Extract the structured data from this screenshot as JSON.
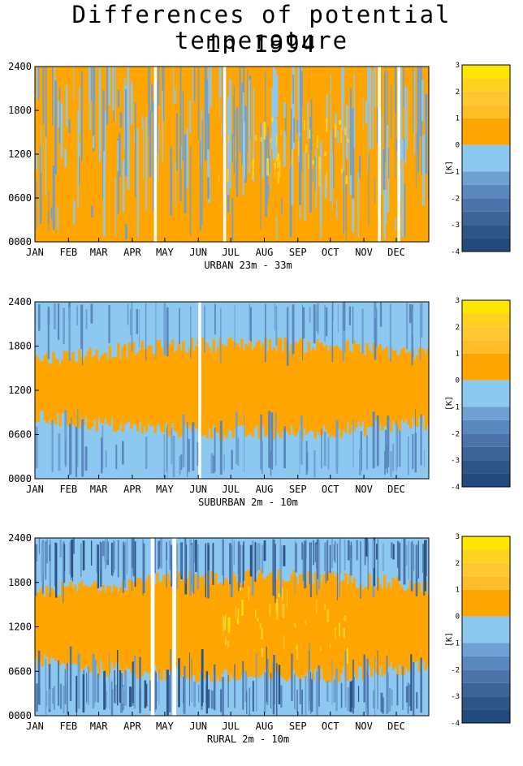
{
  "title_line1": "Differences of potential temperature",
  "title_line2": "in  1994",
  "colorbar": {
    "unit_label": "[K]",
    "tick_labels": [
      "3",
      "2",
      "1",
      "0",
      "-1",
      "-2",
      "-3",
      "-4"
    ],
    "levels": [
      {
        "from": 2.5,
        "to": 3.0,
        "color": "#ffe600"
      },
      {
        "from": 2.0,
        "to": 2.5,
        "color": "#ffd21e"
      },
      {
        "from": 1.5,
        "to": 2.0,
        "color": "#ffc832"
      },
      {
        "from": 1.0,
        "to": 1.5,
        "color": "#ffbe28"
      },
      {
        "from": 0.0,
        "to": 1.0,
        "color": "#ffa500"
      },
      {
        "from": -1.0,
        "to": 0.0,
        "color": "#8cc8f0"
      },
      {
        "from": -1.5,
        "to": -1.0,
        "color": "#6ea0d2"
      },
      {
        "from": -2.0,
        "to": -1.5,
        "color": "#5a87be"
      },
      {
        "from": -2.5,
        "to": -2.0,
        "color": "#4b73aa"
      },
      {
        "from": -3.0,
        "to": -2.5,
        "color": "#3c6496"
      },
      {
        "from": -3.5,
        "to": -3.0,
        "color": "#2d5587"
      },
      {
        "from": -4.0,
        "to": -3.5,
        "color": "#234a7d"
      }
    ]
  },
  "chart_data": [
    {
      "type": "heatmap",
      "xlabel": "URBAN 23m - 33m",
      "x_ticks": [
        "JAN",
        "FEB",
        "MAR",
        "APR",
        "MAY",
        "JUN",
        "JUL",
        "AUG",
        "SEP",
        "OCT",
        "NOV",
        "DEC"
      ],
      "y_ticks": [
        "0000",
        "0600",
        "1200",
        "1800",
        "2400"
      ],
      "xlim": [
        1,
        365
      ],
      "ylim": [
        0,
        2400
      ],
      "base_level": 0.5,
      "band_hours": [
        0,
        2400
      ],
      "band_level": 0.5,
      "background_level": -0.5,
      "missing_days": [
        111,
        175,
        318,
        336
      ],
      "streak_color_levels": [
        -0.5,
        -1.2
      ],
      "z_unit": "K"
    },
    {
      "type": "heatmap",
      "xlabel": "SUBURBAN 2m - 10m",
      "x_ticks": [
        "JAN",
        "FEB",
        "MAR",
        "APR",
        "MAY",
        "JUN",
        "JUL",
        "AUG",
        "SEP",
        "OCT",
        "NOV",
        "DEC"
      ],
      "y_ticks": [
        "0000",
        "0600",
        "1200",
        "1800",
        "2400"
      ],
      "xlim": [
        1,
        365
      ],
      "ylim": [
        0,
        2400
      ],
      "base_level": -0.5,
      "band_hours": [
        800,
        1650
      ],
      "band_level": 0.5,
      "background_level": -0.5,
      "missing_days": [
        152
      ],
      "streak_color_levels": [
        -1.2,
        -1.8
      ],
      "z_unit": "K"
    },
    {
      "type": "heatmap",
      "xlabel": "RURAL 2m - 10m",
      "x_ticks": [
        "JAN",
        "FEB",
        "MAR",
        "APR",
        "MAY",
        "JUN",
        "JUL",
        "AUG",
        "SEP",
        "OCT",
        "NOV",
        "DEC"
      ],
      "y_ticks": [
        "0000",
        "0600",
        "1200",
        "1800",
        "2400"
      ],
      "xlim": [
        1,
        365
      ],
      "ylim": [
        0,
        2400
      ],
      "base_level": -0.5,
      "band_hours": [
        700,
        1700
      ],
      "band_level": 0.5,
      "background_level": -0.5,
      "missing_days": [
        108,
        109,
        128,
        129
      ],
      "streak_color_levels": [
        -1.2,
        -1.8,
        -2.3,
        -3.2
      ],
      "z_unit": "K"
    }
  ]
}
